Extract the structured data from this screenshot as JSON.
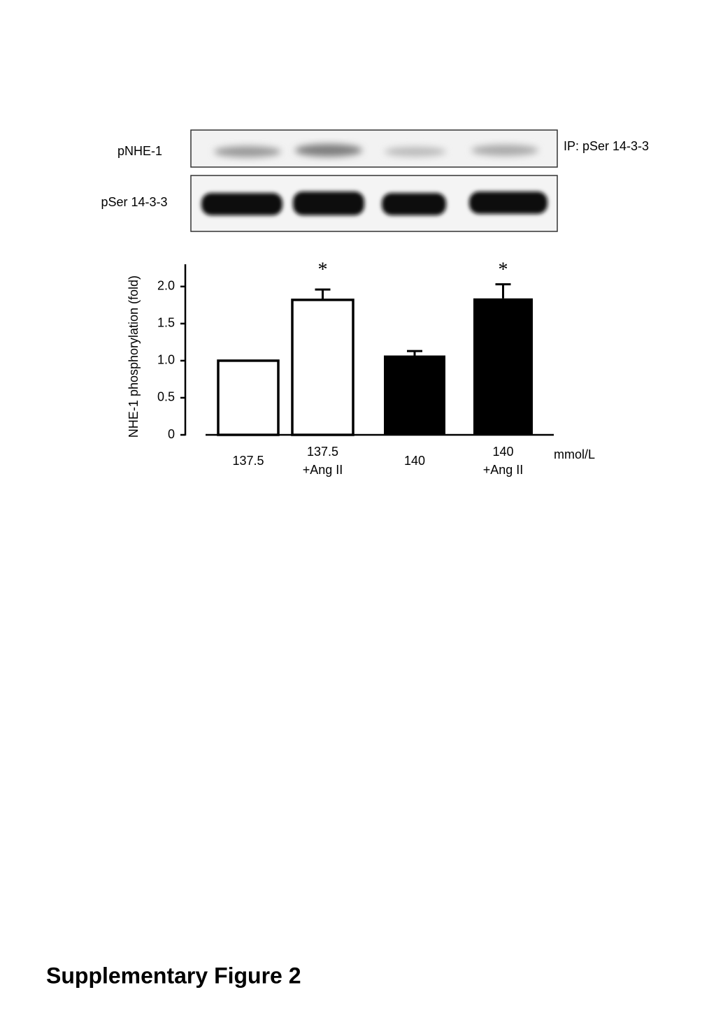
{
  "blot": {
    "rows": [
      "pNHE-1",
      "pSer 14-3-3"
    ],
    "note": "IP: pSer 14-3-3"
  },
  "chart_data": {
    "type": "bar",
    "y_label": "NHE-1 phosphorylation (fold)",
    "x_unit": "mmol/L",
    "categories": [
      [
        "137.5"
      ],
      [
        "137.5",
        "+Ang II"
      ],
      [
        "140"
      ],
      [
        "140",
        "+Ang II"
      ]
    ],
    "values": [
      1.0,
      1.82,
      1.07,
      1.84
    ],
    "errors": [
      0,
      0.14,
      0.06,
      0.19
    ],
    "colors": [
      "#ffffff",
      "#ffffff",
      "#000000",
      "#000000"
    ],
    "significance": [
      null,
      "*",
      null,
      "*"
    ],
    "ylim": [
      0,
      2.3
    ],
    "yticks": [
      0,
      0.5,
      {
        "value": 1,
        "label": "1.0"
      },
      1.5,
      {
        "value": 2,
        "label": "2.0"
      }
    ]
  },
  "caption": "Supplementary Figure 2"
}
